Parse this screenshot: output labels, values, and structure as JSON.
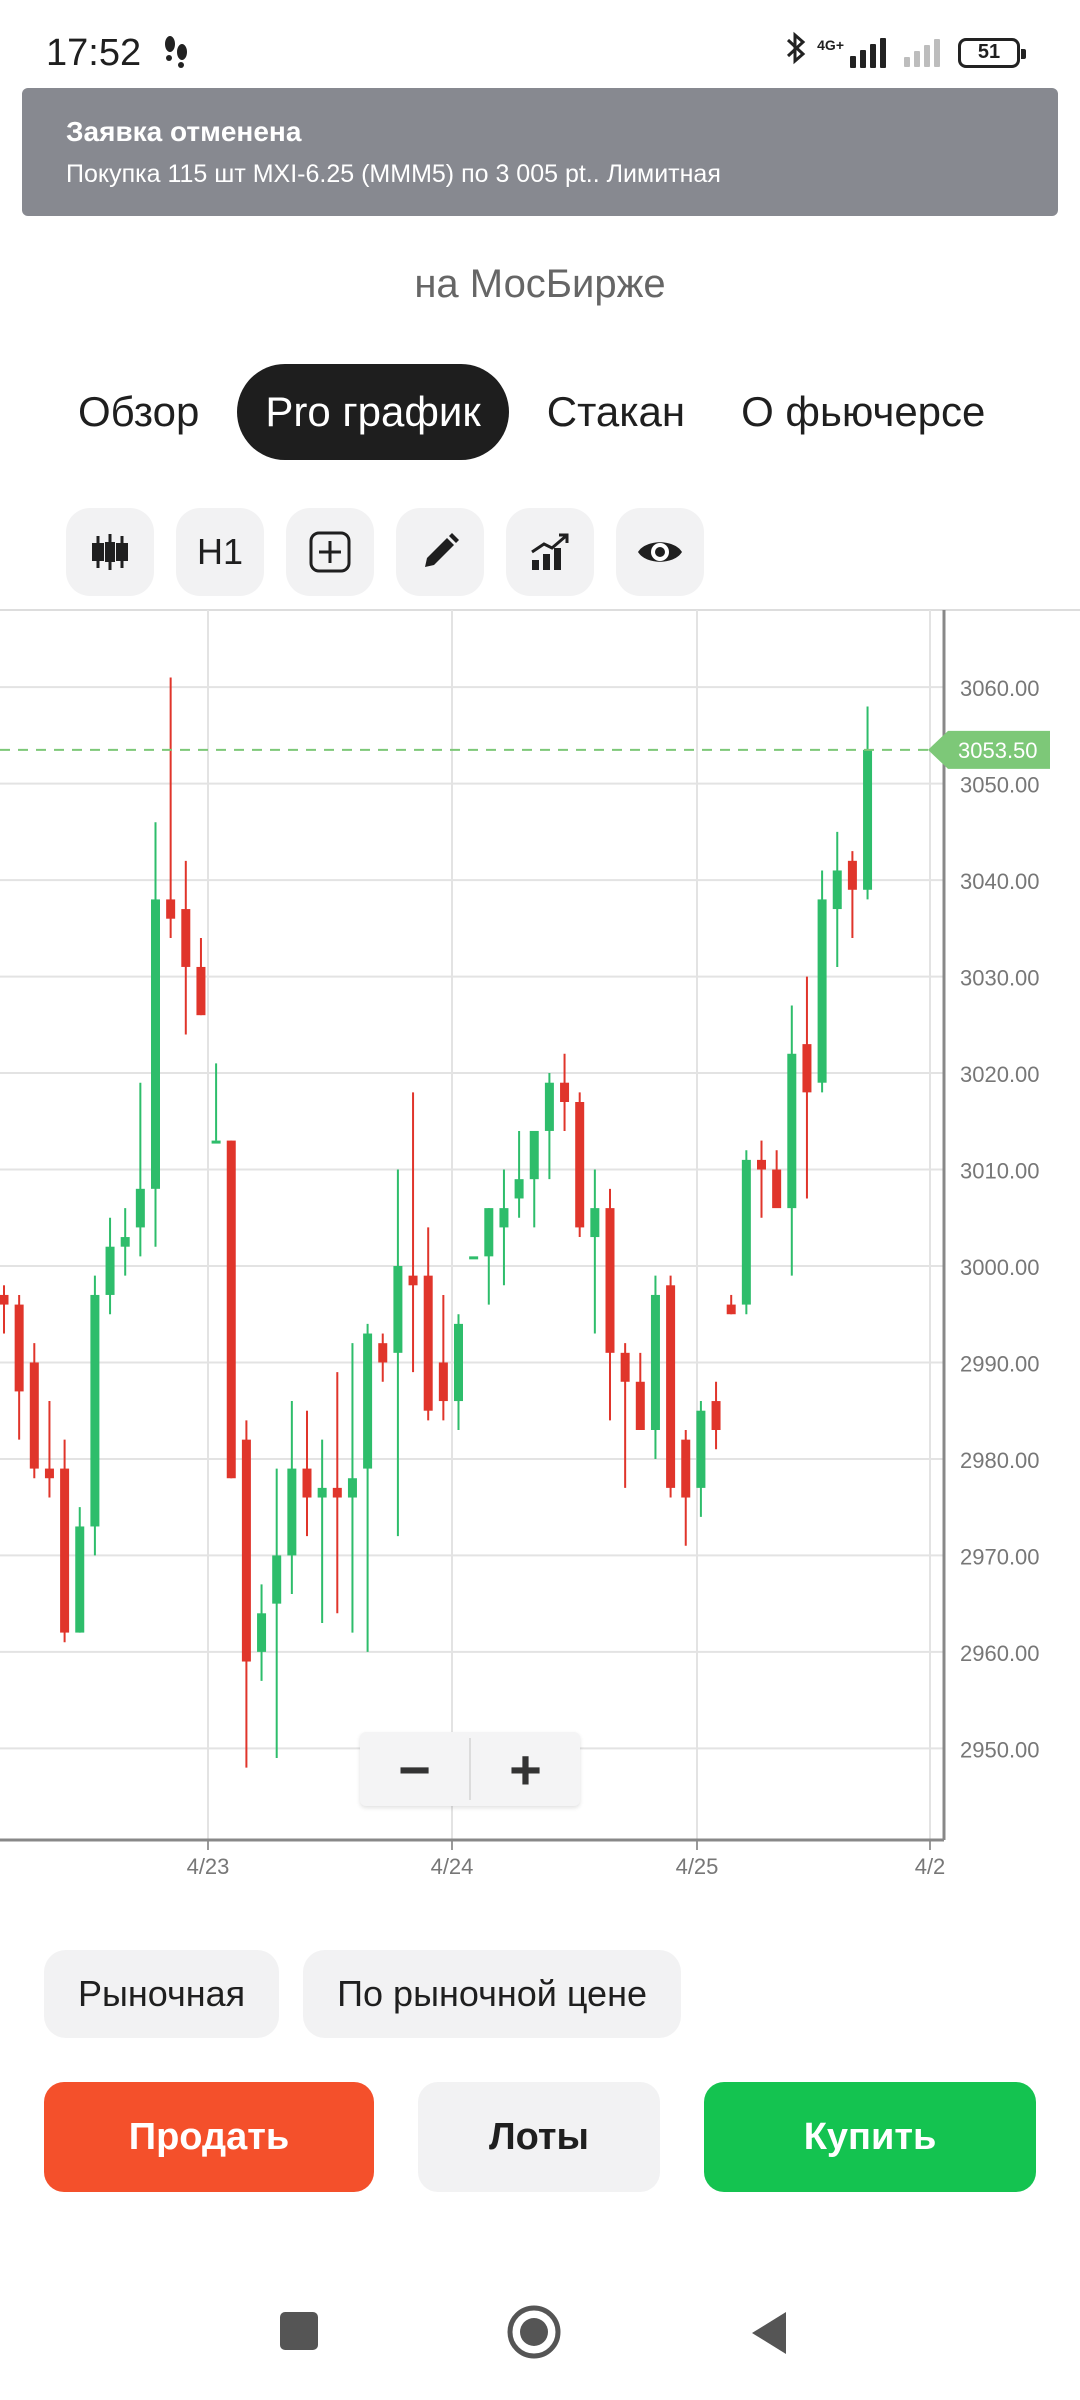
{
  "status": {
    "time": "17:52",
    "network_label": "4G+",
    "battery": "51"
  },
  "toast": {
    "title": "Заявка отменена",
    "message": "Покупка 115 шт MXI-6.25 (MMM5) по 3 005 pt.. Лимитная"
  },
  "header": {
    "exchange": "на МосБирже"
  },
  "tabs": [
    {
      "label": "Обзор",
      "active": false
    },
    {
      "label": "Pro график",
      "active": true
    },
    {
      "label": "Стакан",
      "active": false
    },
    {
      "label": "О фьючерсе",
      "active": false
    }
  ],
  "toolbar": {
    "icons": [
      "candlestick-icon",
      "timeframe",
      "add-indicator-icon",
      "pencil-icon",
      "chart-growth-icon",
      "eye-icon"
    ],
    "timeframe": "H1"
  },
  "chart_data": {
    "type": "candlestick",
    "y_ticks": [
      "3060.00",
      "3050.00",
      "3040.00",
      "3030.00",
      "3020.00",
      "3010.00",
      "3000.00",
      "2990.00",
      "2980.00",
      "2970.00",
      "2960.00",
      "2950.00"
    ],
    "x_ticks": [
      "4/23",
      "4/24",
      "4/25",
      "4/2"
    ],
    "last_price_label": "3053.50",
    "last_price": 3053.5,
    "ylim": [
      2940.5,
      3068
    ],
    "grid": true,
    "colors": {
      "up": "#2ebd6b",
      "down": "#e0352b",
      "last_price": "#7dc878"
    },
    "candles": [
      {
        "o": 2997,
        "h": 2998,
        "l": 2993,
        "c": 2996
      },
      {
        "o": 2996,
        "h": 2997,
        "l": 2982,
        "c": 2987
      },
      {
        "o": 2990,
        "h": 2992,
        "l": 2978,
        "c": 2979
      },
      {
        "o": 2979,
        "h": 2986,
        "l": 2976,
        "c": 2978
      },
      {
        "o": 2979,
        "h": 2982,
        "l": 2961,
        "c": 2962
      },
      {
        "o": 2962,
        "h": 2975,
        "l": 2962,
        "c": 2973
      },
      {
        "o": 2973,
        "h": 2999,
        "l": 2970,
        "c": 2997
      },
      {
        "o": 2997,
        "h": 3005,
        "l": 2995,
        "c": 3002
      },
      {
        "o": 3002,
        "h": 3006,
        "l": 2999,
        "c": 3003
      },
      {
        "o": 3004,
        "h": 3019,
        "l": 3001,
        "c": 3008
      },
      {
        "o": 3008,
        "h": 3046,
        "l": 3002,
        "c": 3038
      },
      {
        "o": 3038,
        "h": 3061,
        "l": 3034,
        "c": 3036
      },
      {
        "o": 3037,
        "h": 3042,
        "l": 3024,
        "c": 3031
      },
      {
        "o": 3031,
        "h": 3034,
        "l": 3026,
        "c": 3026
      },
      {
        "o": 3013,
        "h": 3021,
        "l": 3013,
        "c": 3013
      },
      {
        "o": 3013,
        "h": 3013,
        "l": 2978,
        "c": 2978
      },
      {
        "o": 2982,
        "h": 2984,
        "l": 2948,
        "c": 2959
      },
      {
        "o": 2960,
        "h": 2967,
        "l": 2957,
        "c": 2964
      },
      {
        "o": 2965,
        "h": 2979,
        "l": 2949,
        "c": 2970
      },
      {
        "o": 2970,
        "h": 2986,
        "l": 2966,
        "c": 2979
      },
      {
        "o": 2979,
        "h": 2985,
        "l": 2972,
        "c": 2976
      },
      {
        "o": 2976,
        "h": 2982,
        "l": 2963,
        "c": 2977
      },
      {
        "o": 2977,
        "h": 2989,
        "l": 2964,
        "c": 2976
      },
      {
        "o": 2976,
        "h": 2992,
        "l": 2962,
        "c": 2978
      },
      {
        "o": 2979,
        "h": 2994,
        "l": 2960,
        "c": 2993
      },
      {
        "o": 2992,
        "h": 2993,
        "l": 2988,
        "c": 2990
      },
      {
        "o": 2991,
        "h": 3010,
        "l": 2972,
        "c": 3000
      },
      {
        "o": 2999,
        "h": 3018,
        "l": 2989,
        "c": 2998
      },
      {
        "o": 2999,
        "h": 3004,
        "l": 2984,
        "c": 2985
      },
      {
        "o": 2990,
        "h": 2997,
        "l": 2984,
        "c": 2986
      },
      {
        "o": 2986,
        "h": 2995,
        "l": 2983,
        "c": 2994
      },
      {
        "o": 3001,
        "h": 3001,
        "l": 3001,
        "c": 3001
      },
      {
        "o": 3001,
        "h": 3006,
        "l": 2996,
        "c": 3006
      },
      {
        "o": 3004,
        "h": 3010,
        "l": 2998,
        "c": 3006
      },
      {
        "o": 3007,
        "h": 3014,
        "l": 3005,
        "c": 3009
      },
      {
        "o": 3009,
        "h": 3014,
        "l": 3004,
        "c": 3014
      },
      {
        "o": 3014,
        "h": 3020,
        "l": 3009,
        "c": 3019
      },
      {
        "o": 3019,
        "h": 3022,
        "l": 3014,
        "c": 3017
      },
      {
        "o": 3017,
        "h": 3018,
        "l": 3003,
        "c": 3004
      },
      {
        "o": 3003,
        "h": 3010,
        "l": 2993,
        "c": 3006
      },
      {
        "o": 3006,
        "h": 3008,
        "l": 2984,
        "c": 2991
      },
      {
        "o": 2991,
        "h": 2992,
        "l": 2977,
        "c": 2988
      },
      {
        "o": 2988,
        "h": 2991,
        "l": 2983,
        "c": 2983
      },
      {
        "o": 2983,
        "h": 2999,
        "l": 2980,
        "c": 2997
      },
      {
        "o": 2998,
        "h": 2999,
        "l": 2976,
        "c": 2977
      },
      {
        "o": 2982,
        "h": 2983,
        "l": 2971,
        "c": 2976
      },
      {
        "o": 2977,
        "h": 2986,
        "l": 2974,
        "c": 2985
      },
      {
        "o": 2986,
        "h": 2988,
        "l": 2981,
        "c": 2983
      },
      {
        "o": 2996,
        "h": 2997,
        "l": 2995,
        "c": 2995
      },
      {
        "o": 2996,
        "h": 3012,
        "l": 2995,
        "c": 3011
      },
      {
        "o": 3011,
        "h": 3013,
        "l": 3005,
        "c": 3010
      },
      {
        "o": 3010,
        "h": 3012,
        "l": 3007,
        "c": 3006
      },
      {
        "o": 3006,
        "h": 3027,
        "l": 2999,
        "c": 3022
      },
      {
        "o": 3023,
        "h": 3030,
        "l": 3007,
        "c": 3018
      },
      {
        "o": 3019,
        "h": 3041,
        "l": 3018,
        "c": 3038
      },
      {
        "o": 3037,
        "h": 3045,
        "l": 3031,
        "c": 3041
      },
      {
        "o": 3042,
        "h": 3043,
        "l": 3034,
        "c": 3039
      },
      {
        "o": 3039,
        "h": 3058,
        "l": 3038,
        "c": 3053.5
      }
    ]
  },
  "zoom": {
    "minus": "−",
    "plus": "+"
  },
  "order_types": [
    "Рыночная",
    "По рыночной цене"
  ],
  "actions": {
    "sell": "Продать",
    "lots": "Лоты",
    "buy": "Купить"
  }
}
